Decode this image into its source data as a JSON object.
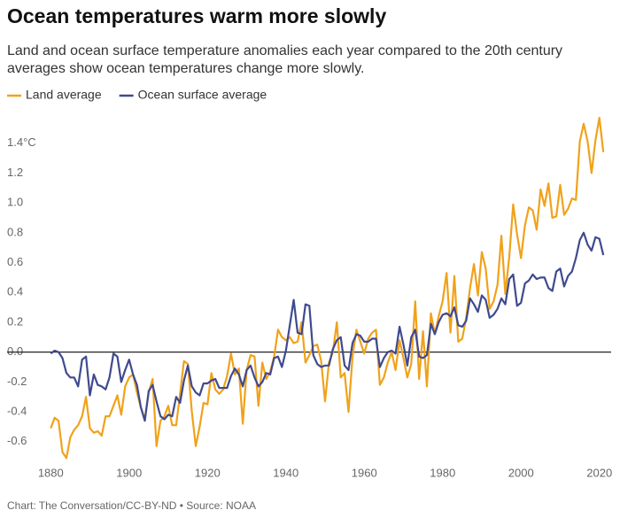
{
  "chart_data": {
    "type": "line",
    "title": "Ocean temperatures warm more slowly",
    "subtitle": [
      "Land and ocean surface temperature anomalies each year compared to the 20th century",
      "averages show ocean temperatures change more slowly."
    ],
    "source": "Chart: The Conversation/CC-BY-ND • Source: NOAA",
    "x": [
      1880,
      1881,
      1882,
      1883,
      1884,
      1885,
      1886,
      1887,
      1888,
      1889,
      1890,
      1891,
      1892,
      1893,
      1894,
      1895,
      1896,
      1897,
      1898,
      1899,
      1900,
      1901,
      1902,
      1903,
      1904,
      1905,
      1906,
      1907,
      1908,
      1909,
      1910,
      1911,
      1912,
      1913,
      1914,
      1915,
      1916,
      1917,
      1918,
      1919,
      1920,
      1921,
      1922,
      1923,
      1924,
      1925,
      1926,
      1927,
      1928,
      1929,
      1930,
      1931,
      1932,
      1933,
      1934,
      1935,
      1936,
      1937,
      1938,
      1939,
      1940,
      1941,
      1942,
      1943,
      1944,
      1945,
      1946,
      1947,
      1948,
      1949,
      1950,
      1951,
      1952,
      1953,
      1954,
      1955,
      1956,
      1957,
      1958,
      1959,
      1960,
      1961,
      1962,
      1963,
      1964,
      1965,
      1966,
      1967,
      1968,
      1969,
      1970,
      1971,
      1972,
      1973,
      1974,
      1975,
      1976,
      1977,
      1978,
      1979,
      1980,
      1981,
      1982,
      1983,
      1984,
      1985,
      1986,
      1987,
      1988,
      1989,
      1990,
      1991,
      1992,
      1993,
      1994,
      1995,
      1996,
      1997,
      1998,
      1999,
      2000,
      2001,
      2002,
      2003,
      2004,
      2005,
      2006,
      2007,
      2008,
      2009,
      2010,
      2011,
      2012,
      2013,
      2014,
      2015,
      2016,
      2017,
      2018,
      2019,
      2020,
      2021
    ],
    "series": [
      {
        "name": "Land average",
        "color": "#f0a21a",
        "values": [
          -0.51,
          -0.44,
          -0.46,
          -0.67,
          -0.71,
          -0.57,
          -0.52,
          -0.49,
          -0.43,
          -0.3,
          -0.51,
          -0.54,
          -0.53,
          -0.56,
          -0.43,
          -0.43,
          -0.36,
          -0.29,
          -0.42,
          -0.23,
          -0.17,
          -0.15,
          -0.27,
          -0.37,
          -0.45,
          -0.27,
          -0.18,
          -0.63,
          -0.46,
          -0.43,
          -0.36,
          -0.49,
          -0.49,
          -0.28,
          -0.06,
          -0.08,
          -0.4,
          -0.63,
          -0.5,
          -0.34,
          -0.35,
          -0.14,
          -0.25,
          -0.28,
          -0.25,
          -0.16,
          -0.01,
          -0.15,
          -0.11,
          -0.48,
          -0.12,
          -0.02,
          -0.03,
          -0.36,
          -0.07,
          -0.18,
          -0.13,
          -0.03,
          0.15,
          0.1,
          0.08,
          0.1,
          0.06,
          0.07,
          0.2,
          -0.07,
          -0.02,
          0.04,
          0.05,
          -0.06,
          -0.33,
          -0.07,
          0.0,
          0.2,
          -0.17,
          -0.14,
          -0.4,
          -0.03,
          0.15,
          0.07,
          -0.01,
          0.09,
          0.13,
          0.15,
          -0.22,
          -0.17,
          -0.07,
          0.0,
          -0.12,
          0.08,
          -0.04,
          -0.17,
          -0.08,
          0.34,
          -0.18,
          0.14,
          -0.23,
          0.26,
          0.12,
          0.24,
          0.34,
          0.53,
          0.13,
          0.51,
          0.07,
          0.09,
          0.23,
          0.43,
          0.59,
          0.38,
          0.67,
          0.56,
          0.29,
          0.34,
          0.45,
          0.78,
          0.39,
          0.64,
          0.99,
          0.79,
          0.63,
          0.85,
          0.97,
          0.95,
          0.82,
          1.09,
          0.98,
          1.13,
          0.9,
          0.91,
          1.12,
          0.92,
          0.96,
          1.03,
          1.02,
          1.41,
          1.53,
          1.41,
          1.2,
          1.42,
          1.57,
          1.34
        ]
      },
      {
        "name": "Ocean surface average",
        "color": "#3f4a8e",
        "values": [
          -0.01,
          0.01,
          0.0,
          -0.04,
          -0.14,
          -0.17,
          -0.17,
          -0.23,
          -0.05,
          -0.03,
          -0.29,
          -0.15,
          -0.22,
          -0.23,
          -0.25,
          -0.17,
          -0.01,
          -0.03,
          -0.2,
          -0.12,
          -0.05,
          -0.15,
          -0.22,
          -0.37,
          -0.46,
          -0.26,
          -0.22,
          -0.33,
          -0.43,
          -0.45,
          -0.42,
          -0.43,
          -0.3,
          -0.34,
          -0.19,
          -0.09,
          -0.23,
          -0.27,
          -0.29,
          -0.21,
          -0.21,
          -0.19,
          -0.18,
          -0.24,
          -0.24,
          -0.24,
          -0.16,
          -0.11,
          -0.15,
          -0.23,
          -0.12,
          -0.09,
          -0.17,
          -0.23,
          -0.2,
          -0.14,
          -0.15,
          -0.04,
          -0.03,
          -0.1,
          0.01,
          0.18,
          0.35,
          0.13,
          0.12,
          0.32,
          0.31,
          -0.02,
          -0.08,
          -0.1,
          -0.09,
          -0.09,
          0.02,
          0.08,
          0.1,
          -0.09,
          -0.12,
          0.06,
          0.12,
          0.11,
          0.07,
          0.07,
          0.09,
          0.09,
          -0.1,
          -0.04,
          0.0,
          0.01,
          -0.01,
          0.17,
          0.05,
          -0.09,
          0.1,
          0.15,
          -0.03,
          -0.04,
          -0.02,
          0.19,
          0.12,
          0.2,
          0.25,
          0.26,
          0.24,
          0.3,
          0.18,
          0.17,
          0.21,
          0.36,
          0.32,
          0.27,
          0.38,
          0.35,
          0.23,
          0.25,
          0.29,
          0.36,
          0.32,
          0.49,
          0.52,
          0.31,
          0.33,
          0.46,
          0.48,
          0.52,
          0.49,
          0.5,
          0.5,
          0.43,
          0.41,
          0.54,
          0.56,
          0.44,
          0.51,
          0.54,
          0.63,
          0.75,
          0.8,
          0.72,
          0.68,
          0.77,
          0.76,
          0.65
        ]
      }
    ],
    "xlim": [
      1877,
      2023
    ],
    "xticks": [
      1880,
      1900,
      1920,
      1940,
      1960,
      1980,
      2000,
      2020
    ],
    "ylim": [
      -0.72,
      1.6
    ],
    "yticks": [
      -0.6,
      -0.4,
      -0.2,
      {
        "value": 0,
        "label": "0.0"
      },
      0.2,
      0.4,
      0.6,
      0.8,
      {
        "value": 1,
        "label": "1.0"
      },
      1.2,
      {
        "value": 1.4,
        "label": "1.4°C"
      }
    ],
    "grid": false,
    "legend": "top-left"
  }
}
